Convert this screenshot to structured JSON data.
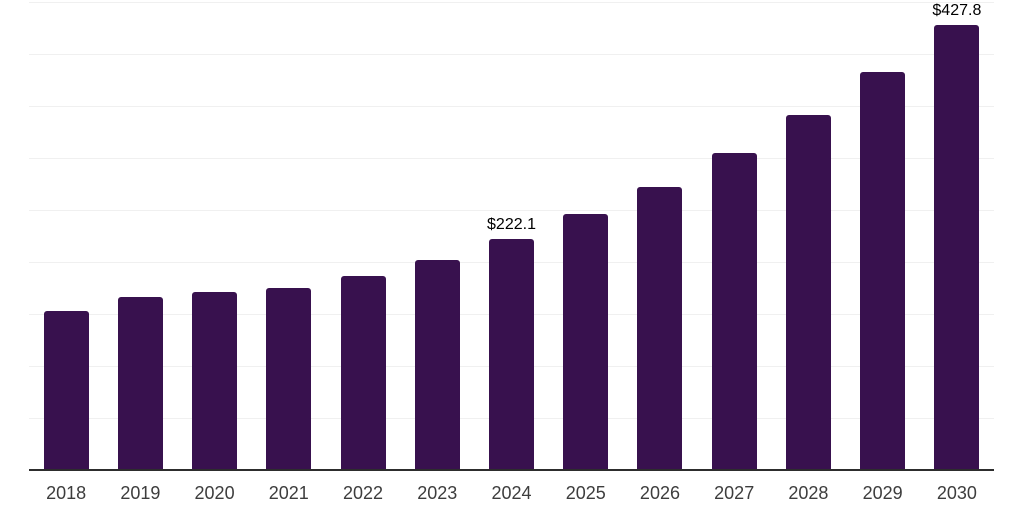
{
  "chart_data": {
    "type": "bar",
    "title": "",
    "xlabel": "",
    "ylabel": "",
    "categories": [
      "2018",
      "2019",
      "2020",
      "2021",
      "2022",
      "2023",
      "2024",
      "2025",
      "2026",
      "2027",
      "2028",
      "2029",
      "2030"
    ],
    "values": [
      152.5,
      166.3,
      171.0,
      174.6,
      186.3,
      202.3,
      222.1,
      245.7,
      272.4,
      304.8,
      341.2,
      382.6,
      427.8
    ],
    "annotations": [
      {
        "category": "2024",
        "label": "$222.1"
      },
      {
        "category": "2030",
        "label": "$427.8"
      }
    ],
    "ylim": [
      0,
      450
    ],
    "grid_step": 50,
    "grid": true,
    "legend": "none",
    "y_axis_tick_labels_visible": false,
    "colors": {
      "bar": "#38114e",
      "gridline": "#f0f0f0",
      "axis_line": "#2d2d2d",
      "x_label": "#3d3d3d",
      "annotation": "#000000"
    },
    "background": "#ffffff"
  }
}
